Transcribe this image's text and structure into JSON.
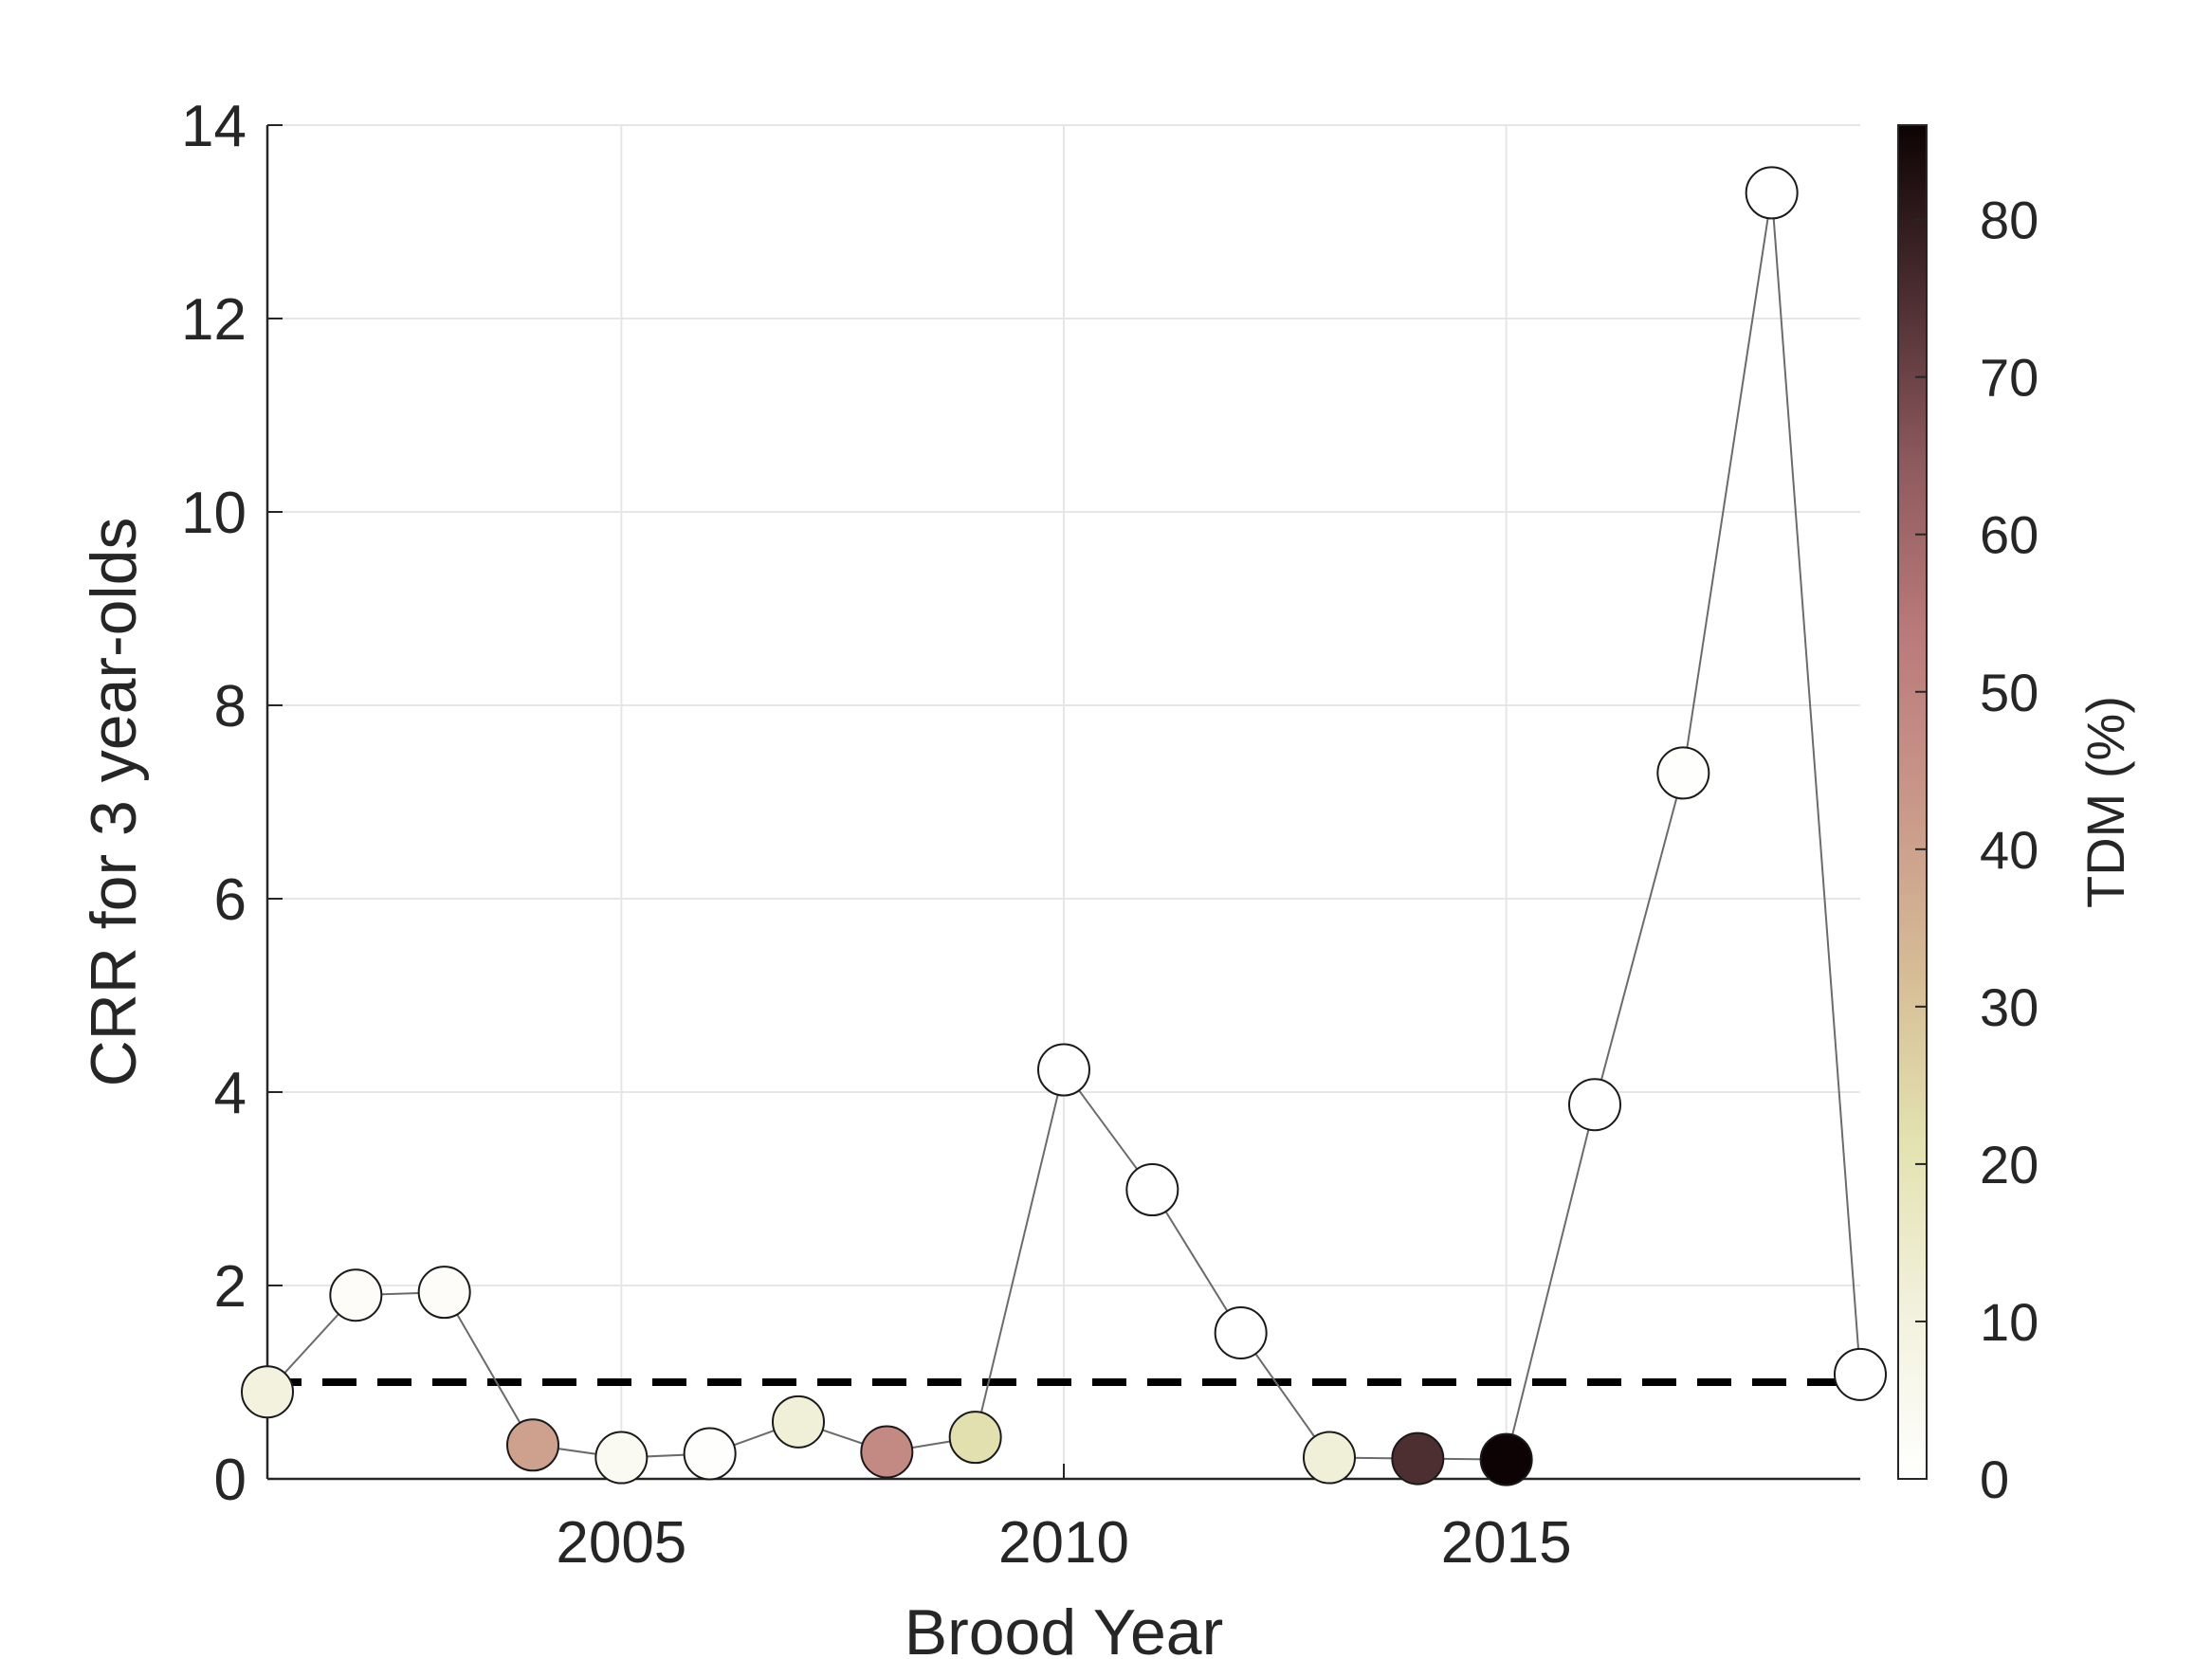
{
  "chart_data": {
    "type": "scatter",
    "title": "",
    "xlabel": "Brood Year",
    "ylabel": "CRR for 3 year-olds",
    "xlim": [
      2001,
      2019
    ],
    "ylim": [
      0,
      14
    ],
    "xticks": [
      2005,
      2010,
      2015
    ],
    "yticks": [
      0,
      2,
      4,
      6,
      8,
      10,
      12,
      14
    ],
    "grid": true,
    "reference_line": {
      "y": 1,
      "style": "dashed",
      "color": "#000000"
    },
    "connecting_line": true,
    "series": [
      {
        "x": [
          2001,
          2002,
          2003,
          2004,
          2005,
          2006,
          2007,
          2008,
          2009,
          2010,
          2011,
          2012,
          2013,
          2014,
          2015,
          2016,
          2017,
          2018,
          2019
        ],
        "y": [
          0.9,
          1.9,
          1.93,
          0.35,
          0.22,
          0.26,
          0.59,
          0.28,
          0.43,
          4.23,
          2.99,
          1.51,
          0.22,
          0.21,
          0.2,
          3.87,
          7.3,
          13.3,
          1.08
        ],
        "color_values": [
          10,
          2,
          2,
          40,
          4,
          1,
          12,
          48,
          22,
          0,
          0,
          0,
          12,
          75,
          86,
          0,
          1,
          0,
          0
        ]
      }
    ],
    "colorbar": {
      "label": "TDM (%)",
      "range": [
        0,
        86
      ],
      "ticks": [
        0,
        10,
        20,
        30,
        40,
        50,
        60,
        70,
        80
      ],
      "colormap": [
        "#ffffff",
        "#f2f1dc",
        "#e3e2b0",
        "#d6bc96",
        "#c9978a",
        "#ba7a7a",
        "#8e5a5e",
        "#4b2d30",
        "#0d0304"
      ]
    }
  }
}
